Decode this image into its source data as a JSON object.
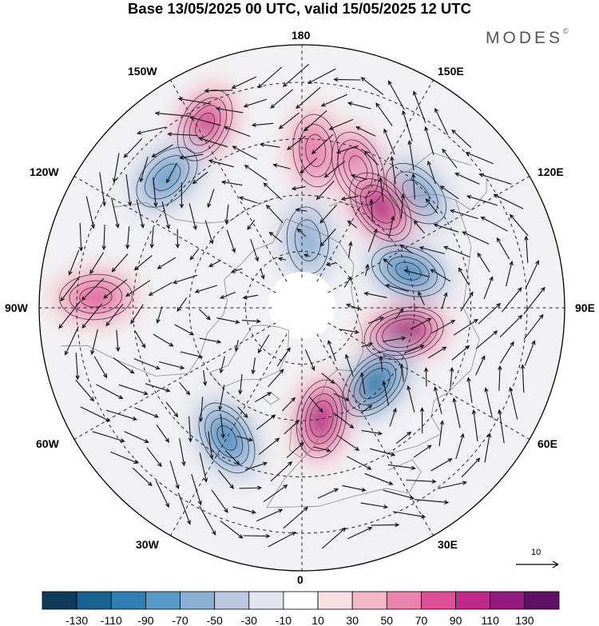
{
  "title": "Base 13/05/2025 00 UTC, valid 15/05/2025 12 UTC",
  "brand": "MODES",
  "brand_mark": "©",
  "longitude_labels": {
    "lon_180": "180",
    "lon_150e": "150E",
    "lon_120e": "120E",
    "lon_90e": "90E",
    "lon_60e": "60E",
    "lon_30e": "30E",
    "lon_0": "0",
    "lon_30w": "30W",
    "lon_60w": "60W",
    "lon_90w": "90W",
    "lon_120w": "120W",
    "lon_150w": "150W"
  },
  "reference_vector_label": "10",
  "colorbar": {
    "ticks": [
      "-130",
      "-110",
      "-90",
      "-70",
      "-50",
      "-30",
      "-10",
      "10",
      "30",
      "50",
      "70",
      "90",
      "110",
      "130"
    ],
    "colors": [
      "#0e3a5c",
      "#17628f",
      "#2f7fb5",
      "#5698c6",
      "#8bafd3",
      "#bcc8e1",
      "#e2e4f0",
      "#ffffff",
      "#f8dfe1",
      "#f2b8c8",
      "#ea83ad",
      "#dc4f98",
      "#c0288a",
      "#931a7e",
      "#5e1265"
    ]
  },
  "anomaly_features": [
    {
      "sign": "positive",
      "level": 3,
      "lon": 175,
      "lat": 48
    },
    {
      "sign": "positive",
      "level": 4,
      "lon": 158,
      "lat": 50
    },
    {
      "sign": "negative",
      "level": 3,
      "lon": 135,
      "lat": 47
    },
    {
      "sign": "positive",
      "level": 4,
      "lon": 208,
      "lat": 35
    },
    {
      "sign": "positive",
      "level": 5,
      "lon": 142,
      "lat": 56
    },
    {
      "sign": "negative",
      "level": 4,
      "lon": 109,
      "lat": 60
    },
    {
      "sign": "positive",
      "level": 6,
      "lon": 76,
      "lat": 62
    },
    {
      "sign": "negative",
      "level": 5,
      "lon": 44,
      "lat": 62
    },
    {
      "sign": "positive",
      "level": 5,
      "lon": 10,
      "lat": 60
    },
    {
      "sign": "negative",
      "level": 4,
      "lon": -30,
      "lat": 50
    },
    {
      "sign": "positive",
      "level": 3,
      "lon": -93,
      "lat": 35
    },
    {
      "sign": "negative",
      "level": 3,
      "lon": -134,
      "lat": 40
    },
    {
      "sign": "negative",
      "level": 2,
      "lon": 175,
      "lat": 72
    }
  ]
}
